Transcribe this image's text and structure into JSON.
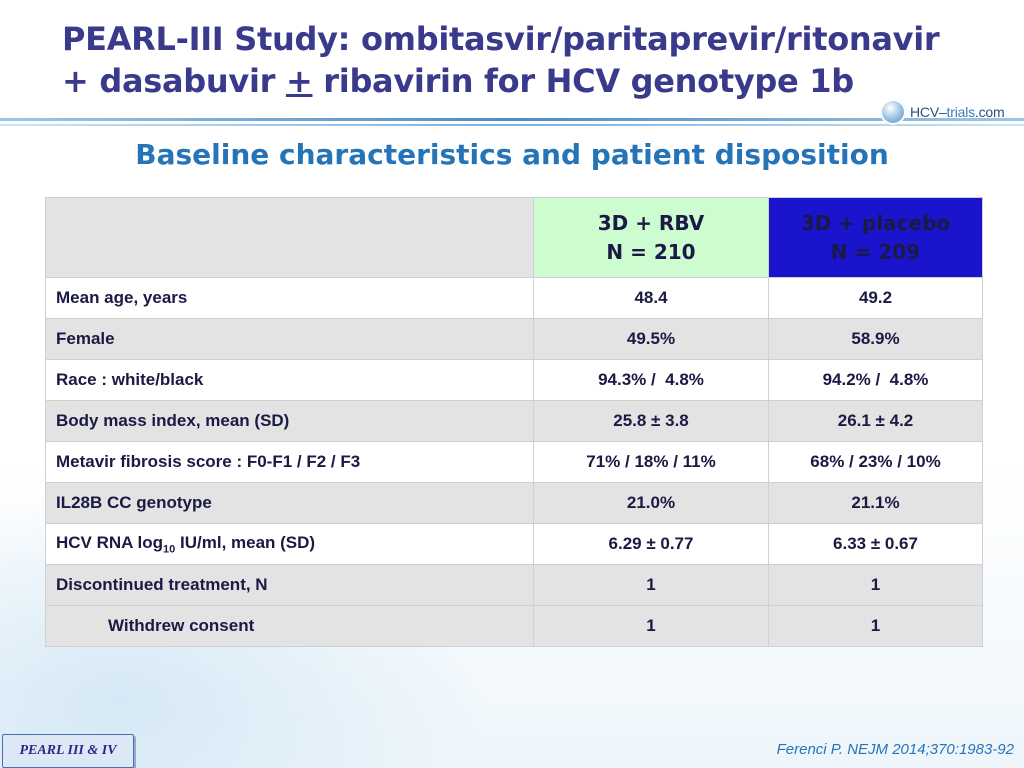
{
  "header": {
    "title_line1": "PEARL-III Study: ombitasvir/paritaprevir/ritonavir",
    "title_line2_pre": "+ dasabuvir ",
    "title_line2_pm": "+",
    "title_line2_post": " ribavirin for HCV genotype 1b",
    "logo_text_a": "HCV–",
    "logo_text_b": "trials",
    "logo_text_c": ".com"
  },
  "subtitle": "Baseline characteristics and patient disposition",
  "table": {
    "columns": [
      {
        "line1": "3D + RBV",
        "line2": "N = 210"
      },
      {
        "line1": "3D + placebo",
        "line2": "N = 209"
      }
    ],
    "rows": [
      {
        "label": "Mean age, years",
        "v1": "48.4",
        "v2": "49.2"
      },
      {
        "label": "Female",
        "v1": "49.5%",
        "v2": "58.9%"
      },
      {
        "label": "Race : white/black",
        "v1": "94.3% /  4.8%",
        "v2": "94.2% /  4.8%"
      },
      {
        "label": "Body mass index, mean (SD)",
        "v1": "25.8 ± 3.8",
        "v2": "26.1 ± 4.2"
      },
      {
        "label": "Metavir fibrosis score : F0-F1 / F2 / F3",
        "v1": "71% / 18% / 11%",
        "v2": "68% / 23% / 10%"
      },
      {
        "label": "IL28B CC genotype",
        "v1": "21.0%",
        "v2": "21.1%"
      },
      {
        "label_pre": "HCV RNA log",
        "label_sub": "10",
        "label_post": " IU/ml, mean (SD)",
        "v1": "6.29 ± 0.77",
        "v2": "6.33 ± 0.67"
      },
      {
        "label": "Discontinued treatment, N",
        "v1": "1",
        "v2": "1"
      },
      {
        "label": "Withdrew consent",
        "v1": "1",
        "v2": "1"
      }
    ]
  },
  "footer": {
    "badge": "PEARL III & IV",
    "reference": "Ferenci P. NEJM 2014;370:1983-92"
  }
}
